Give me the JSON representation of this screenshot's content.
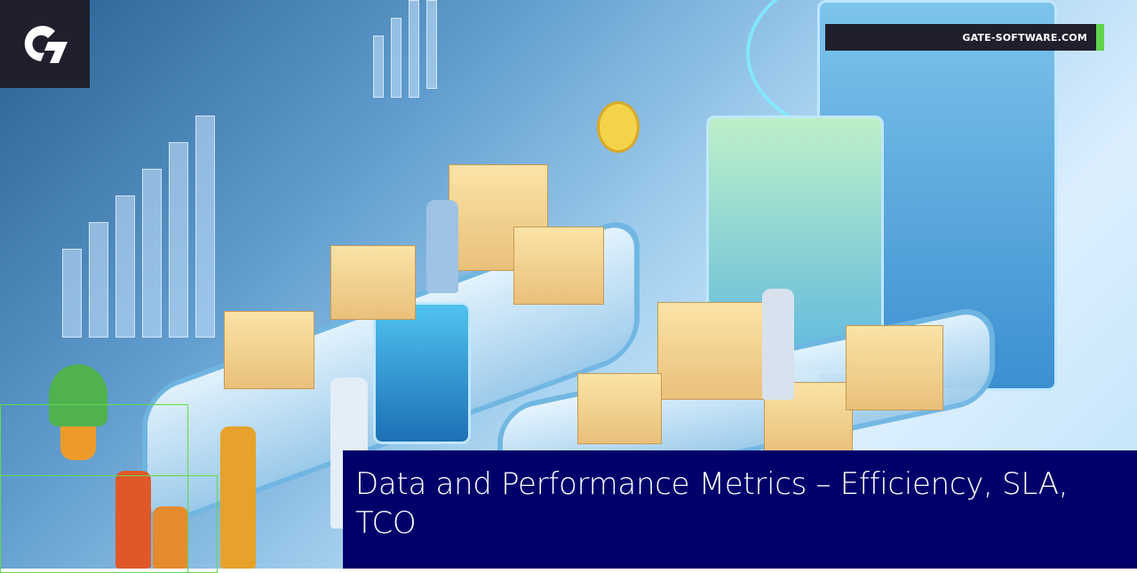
{
  "brand": {
    "logo_text": "G",
    "site_label": "GATE-SOFTWARE.COM",
    "accent_color": "#5fd44a",
    "dark_color": "#1f1f2e"
  },
  "article": {
    "title": "Data and Performance Metrics – Efficiency, SLA, TCO",
    "title_bg_color": "#00006b"
  },
  "illustration": {
    "description_icon": "warehouse-logistics-illustration"
  }
}
